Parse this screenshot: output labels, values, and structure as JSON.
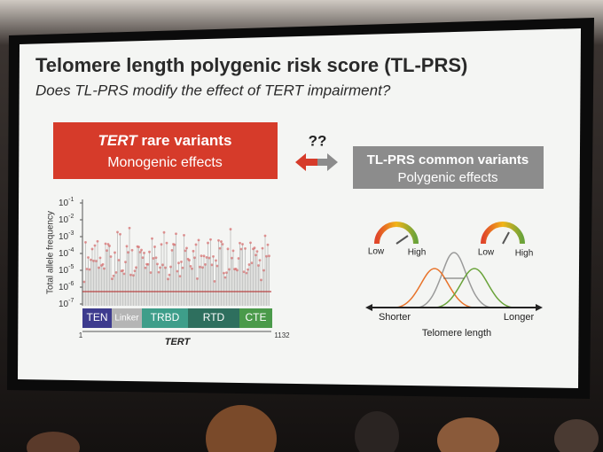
{
  "slide": {
    "title": "Telomere length polygenic risk score (TL-PRS)",
    "subtitle": "Does TL-PRS modify the effect of TERT impairment?",
    "left_box": {
      "gene": "TERT",
      "heading_rest": "rare variants",
      "subheading": "Monogenic effects"
    },
    "question": "??",
    "right_box": {
      "heading": "TL-PRS common variants",
      "subheading": "Polygenic effects"
    },
    "plot": {
      "y_label": "Total allele frequency",
      "y_ticks": [
        {
          "base": "10",
          "exponent": "-1"
        },
        {
          "base": "10",
          "exponent": "-2"
        },
        {
          "base": "10",
          "exponent": "-3"
        },
        {
          "base": "10",
          "exponent": "-4"
        },
        {
          "base": "10",
          "exponent": "-5"
        },
        {
          "base": "10",
          "exponent": "-6"
        },
        {
          "base": "10",
          "exponent": "-7"
        }
      ],
      "domains": [
        "TEN",
        "Linker",
        "TRBD",
        "RTD",
        "CTE"
      ],
      "x_start": "1",
      "x_end": "1132",
      "x_label": "TERT"
    },
    "gauges": [
      {
        "low": "Low",
        "high": "High"
      },
      {
        "low": "Low",
        "high": "High"
      }
    ],
    "distribution": {
      "left": "Shorter",
      "right": "Longer",
      "axis_label": "Telomere length"
    }
  }
}
